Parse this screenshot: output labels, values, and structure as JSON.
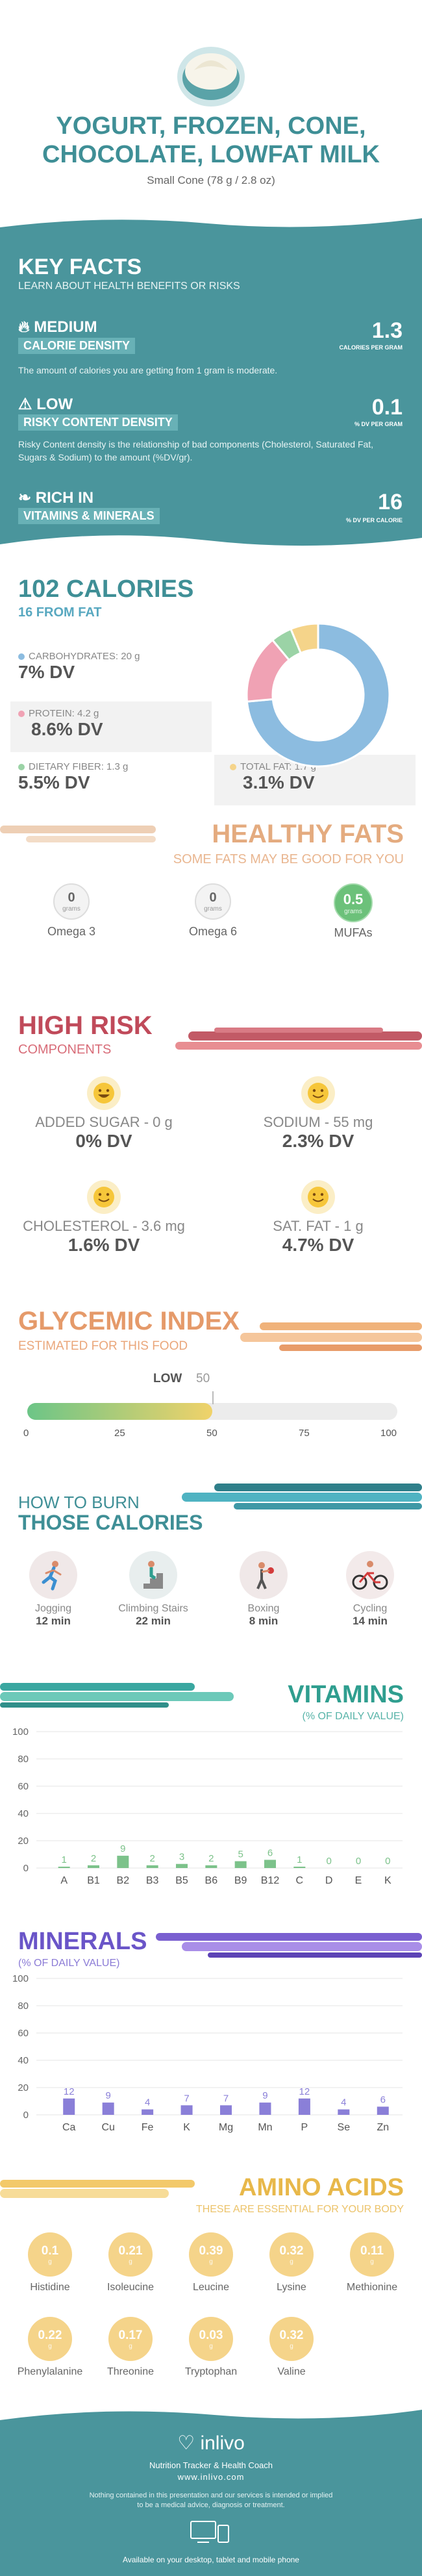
{
  "header": {
    "title_line1": "YOGURT, FROZEN, CONE,",
    "title_line2": "CHOCOLATE, LOWFAT MILK",
    "serving": "Small Cone (78 g / 2.8 oz)"
  },
  "key_facts": {
    "title": "KEY FACTS",
    "subtitle": "LEARN ABOUT HEALTH BENEFITS OR RISKS",
    "items": [
      {
        "level": "MEDIUM",
        "label": "CALORIE DENSITY",
        "value": "1.3",
        "unit": "CALORIES PER GRAM",
        "desc": "The amount of calories you are getting from 1 gram is moderate.",
        "icon": "flame-icon"
      },
      {
        "level": "LOW",
        "label": "RISKY CONTENT DENSITY",
        "value": "0.1",
        "unit": "% DV PER GRAM",
        "desc": "Risky Content density is the relationship of bad components (Cholesterol, Saturated Fat, Sugars & Sodium) to the amount (%DV/gr).",
        "icon": "warning-icon"
      },
      {
        "level": "RICH  IN",
        "label": "VITAMINS & MINERALS",
        "value": "16",
        "unit": "% DV PER CALORIE",
        "desc": "",
        "icon": "leaf-icon"
      }
    ]
  },
  "calories": {
    "title": "102 CALORIES",
    "subtitle": "16 FROM FAT",
    "carbs_label": "CARBOHYDRATES: 20 g",
    "carbs_dv": "7% DV",
    "protein_label": "PROTEIN: 4.2 g",
    "protein_dv": "8.6% DV",
    "fiber_label": "DIETARY FIBER: 1.3 g",
    "fiber_dv": "5.5% DV",
    "fat_label": "TOTAL FAT: 1.7 g",
    "fat_dv": "3.1% DV",
    "colors": {
      "carbs": "#8cbce0",
      "protein": "#f0a2b4",
      "fiber": "#9bd3a6",
      "fat": "#f5d48a"
    }
  },
  "chart_data": {
    "type": "pie",
    "categories": [
      "CARBOHYDRATES",
      "PROTEIN",
      "DIETARY FIBER",
      "TOTAL FAT"
    ],
    "values": [
      20,
      4.2,
      1.3,
      1.7
    ]
  },
  "healthy_fats": {
    "title": "HEALTHY FATS",
    "subtitle": "SOME FATS MAY BE GOOD FOR YOU",
    "items": [
      {
        "value": "0",
        "unit": "grams",
        "name": "Omega 3"
      },
      {
        "value": "0",
        "unit": "grams",
        "name": "Omega 6"
      },
      {
        "value": "0.5",
        "unit": "grams",
        "name": "MUFAs"
      }
    ]
  },
  "high_risk": {
    "title": "HIGH RISK",
    "subtitle": "COMPONENTS",
    "items": [
      {
        "label": "ADDED SUGAR - 0 g",
        "dv": "0% DV"
      },
      {
        "label": "SODIUM - 55 mg",
        "dv": "2.3% DV"
      },
      {
        "label": "CHOLESTEROL - 3.6 mg",
        "dv": "1.6% DV"
      },
      {
        "label": "SAT. FAT - 1 g",
        "dv": "4.7% DV"
      }
    ]
  },
  "glycemic": {
    "title": "GLYCEMIC INDEX",
    "subtitle": "ESTIMATED FOR THIS FOOD",
    "level": "LOW",
    "value": 50,
    "value_label": "50",
    "ticks": [
      "0",
      "25",
      "50",
      "75",
      "100"
    ]
  },
  "burn": {
    "title1": "HOW TO BURN",
    "title2": "THOSE CALORIES",
    "items": [
      {
        "name": "Jogging",
        "time": "12 min",
        "icon": "jogging-icon"
      },
      {
        "name": "Climbing Stairs",
        "time": "22 min",
        "icon": "stairs-icon"
      },
      {
        "name": "Boxing",
        "time": "8 min",
        "icon": "boxing-icon"
      },
      {
        "name": "Cycling",
        "time": "14 min",
        "icon": "cycling-icon"
      }
    ]
  },
  "vitamins": {
    "title": "VITAMINS",
    "subtitle": "(% OF DAILY VALUE)",
    "yticks": [
      "100",
      "80",
      "60",
      "40",
      "20",
      "0"
    ],
    "categories": [
      "A",
      "B1",
      "B2",
      "B3",
      "B5",
      "B6",
      "B9",
      "B12",
      "C",
      "D",
      "E",
      "K"
    ],
    "values": [
      1,
      2,
      9,
      2,
      3,
      2,
      5,
      6,
      1,
      0,
      0,
      0
    ],
    "color": "#7cc28a"
  },
  "minerals": {
    "title": "MINERALS",
    "subtitle": "(% OF DAILY VALUE)",
    "yticks": [
      "100",
      "80",
      "60",
      "40",
      "20",
      "0"
    ],
    "categories": [
      "Ca",
      "Cu",
      "Fe",
      "K",
      "Mg",
      "Mn",
      "P",
      "Se",
      "Zn"
    ],
    "values": [
      12,
      9,
      4,
      7,
      7,
      9,
      12,
      4,
      6
    ],
    "color": "#8a7fd8"
  },
  "amino": {
    "title": "AMINO ACIDS",
    "subtitle": "THESE ARE ESSENTIAL FOR YOUR BODY",
    "unit": "g",
    "items": [
      {
        "value": "0.1",
        "name": "Histidine"
      },
      {
        "value": "0.21",
        "name": "Isoleucine"
      },
      {
        "value": "0.39",
        "name": "Leucine"
      },
      {
        "value": "0.32",
        "name": "Lysine"
      },
      {
        "value": "0.11",
        "name": "Methionine"
      },
      {
        "value": "0.22",
        "name": "Phenylalanine"
      },
      {
        "value": "0.17",
        "name": "Threonine"
      },
      {
        "value": "0.03",
        "name": "Tryptophan"
      },
      {
        "value": "0.32",
        "name": "Valine"
      }
    ]
  },
  "footer": {
    "brand": "inlivo",
    "tagline": "Nutrition Tracker & Health Coach",
    "url": "www.inlivo.com",
    "disclaimer1": "Nothing contained in this presentation and our services is intended or implied",
    "disclaimer2": "to be a medical advice, diagnosis or treatment.",
    "available": "Available on your desktop, tablet and mobile phone"
  }
}
